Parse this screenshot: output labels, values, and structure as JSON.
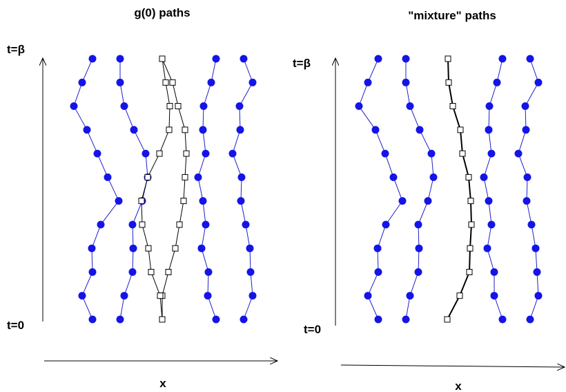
{
  "panels": [
    {
      "title": "g(0) paths",
      "t_top": "t=β",
      "t_bottom": "t=0",
      "xlabel": "x",
      "blue_paths": [
        [
          134,
          119,
          107,
          126,
          141,
          156,
          172,
          146,
          133,
          134,
          119,
          134
        ],
        [
          174,
          174,
          180,
          194,
          211,
          214,
          206,
          192,
          193,
          192,
          180,
          174
        ],
        [
          313,
          306,
          295,
          294,
          298,
          287,
          294,
          298,
          292,
          302,
          301,
          313
        ],
        [
          353,
          366,
          347,
          348,
          337,
          350,
          349,
          356,
          362,
          363,
          366,
          353
        ]
      ],
      "square_paths": [
        [
          235,
          250,
          258,
          268,
          270,
          268,
          266,
          260,
          254,
          244,
          235,
          235
        ],
        [
          235,
          240,
          246,
          245,
          231,
          214,
          205,
          206,
          215,
          219,
          232,
          235
        ]
      ]
    },
    {
      "title": "\"mixture\" paths",
      "t_top": "t=β",
      "t_bottom": "t=0",
      "xlabel": "x",
      "blue_paths": [
        [
          548,
          533,
          520,
          544,
          558,
          570,
          583,
          559,
          547,
          548,
          533,
          548
        ],
        [
          588,
          588,
          594,
          608,
          625,
          628,
          620,
          606,
          607,
          606,
          594,
          588
        ],
        [
          728,
          720,
          709,
          708,
          712,
          701,
          708,
          712,
          706,
          716,
          716,
          728
        ],
        [
          768,
          780,
          761,
          762,
          751,
          764,
          763,
          770,
          776,
          778,
          780,
          768
        ]
      ],
      "square_paths": [
        [
          649,
          650,
          656,
          667,
          670,
          679,
          682,
          683,
          681,
          680,
          666,
          648
        ]
      ]
    }
  ],
  "colors": {
    "blue": "#1414e6",
    "line": "#1e1ec8",
    "square": "#000000"
  }
}
